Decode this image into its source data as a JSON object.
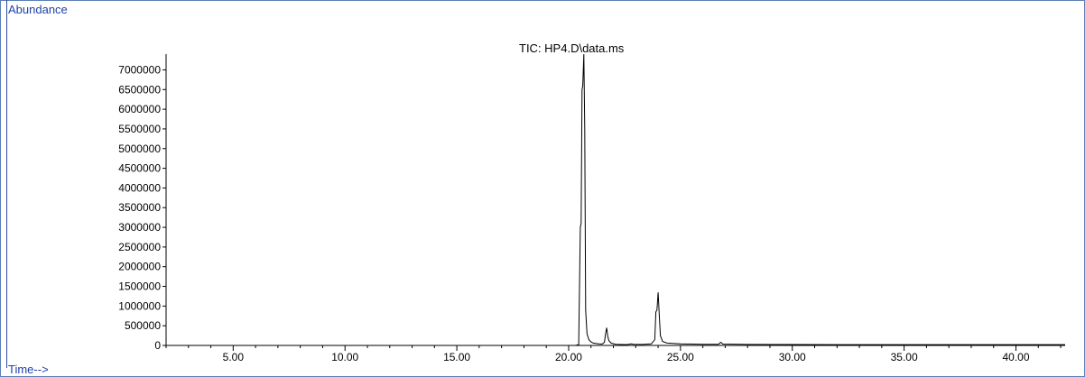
{
  "chart_data": {
    "type": "line",
    "title": "TIC: HP4.D\\data.ms",
    "ylabel": "Abundance",
    "xlabel": "Time-->",
    "xlim": [
      2.0,
      42.2
    ],
    "ylim": [
      0,
      7400000
    ],
    "x_ticks": [
      {
        "value": 5,
        "label": "5.00"
      },
      {
        "value": 10,
        "label": "10.00"
      },
      {
        "value": 15,
        "label": "15.00"
      },
      {
        "value": 20,
        "label": "20.00"
      },
      {
        "value": 25,
        "label": "25.00"
      },
      {
        "value": 30,
        "label": "30.00"
      },
      {
        "value": 35,
        "label": "35.00"
      },
      {
        "value": 40,
        "label": "40.00"
      }
    ],
    "y_ticks": [
      {
        "value": 0,
        "label": "0"
      },
      {
        "value": 500000,
        "label": "500000"
      },
      {
        "value": 1000000,
        "label": "1000000"
      },
      {
        "value": 1500000,
        "label": "1500000"
      },
      {
        "value": 2000000,
        "label": "2000000"
      },
      {
        "value": 2500000,
        "label": "2500000"
      },
      {
        "value": 3000000,
        "label": "3000000"
      },
      {
        "value": 3500000,
        "label": "3500000"
      },
      {
        "value": 4000000,
        "label": "4000000"
      },
      {
        "value": 4500000,
        "label": "4500000"
      },
      {
        "value": 5000000,
        "label": "5000000"
      },
      {
        "value": 5500000,
        "label": "5500000"
      },
      {
        "value": 6000000,
        "label": "6000000"
      },
      {
        "value": 6500000,
        "label": "6500000"
      },
      {
        "value": 7000000,
        "label": "7000000"
      }
    ],
    "grid": false,
    "series": [
      {
        "points": [
          [
            2.0,
            0
          ],
          [
            20.3,
            0
          ],
          [
            20.45,
            20000
          ],
          [
            20.52,
            3000000
          ],
          [
            20.56,
            3100000
          ],
          [
            20.6,
            6500000
          ],
          [
            20.63,
            6600000
          ],
          [
            20.68,
            7400000
          ],
          [
            20.72,
            5500000
          ],
          [
            20.76,
            900000
          ],
          [
            20.82,
            300000
          ],
          [
            20.9,
            150000
          ],
          [
            21.0,
            90000
          ],
          [
            21.1,
            60000
          ],
          [
            21.2,
            50000
          ],
          [
            21.35,
            40000
          ],
          [
            21.5,
            35000
          ],
          [
            21.6,
            80000
          ],
          [
            21.65,
            300000
          ],
          [
            21.7,
            450000
          ],
          [
            21.75,
            230000
          ],
          [
            21.8,
            120000
          ],
          [
            21.9,
            60000
          ],
          [
            22.1,
            30000
          ],
          [
            22.6,
            20000
          ],
          [
            22.8,
            40000
          ],
          [
            22.9,
            30000
          ],
          [
            23.3,
            25000
          ],
          [
            23.7,
            40000
          ],
          [
            23.85,
            150000
          ],
          [
            23.9,
            850000
          ],
          [
            23.95,
            900000
          ],
          [
            24.0,
            1350000
          ],
          [
            24.05,
            800000
          ],
          [
            24.1,
            250000
          ],
          [
            24.2,
            100000
          ],
          [
            24.4,
            60000
          ],
          [
            25.0,
            40000
          ],
          [
            26.0,
            30000
          ],
          [
            26.7,
            30000
          ],
          [
            26.8,
            80000
          ],
          [
            26.9,
            35000
          ],
          [
            28.0,
            25000
          ],
          [
            32.0,
            20000
          ],
          [
            36.0,
            20000
          ],
          [
            40.0,
            20000
          ],
          [
            42.2,
            20000
          ]
        ]
      }
    ]
  }
}
